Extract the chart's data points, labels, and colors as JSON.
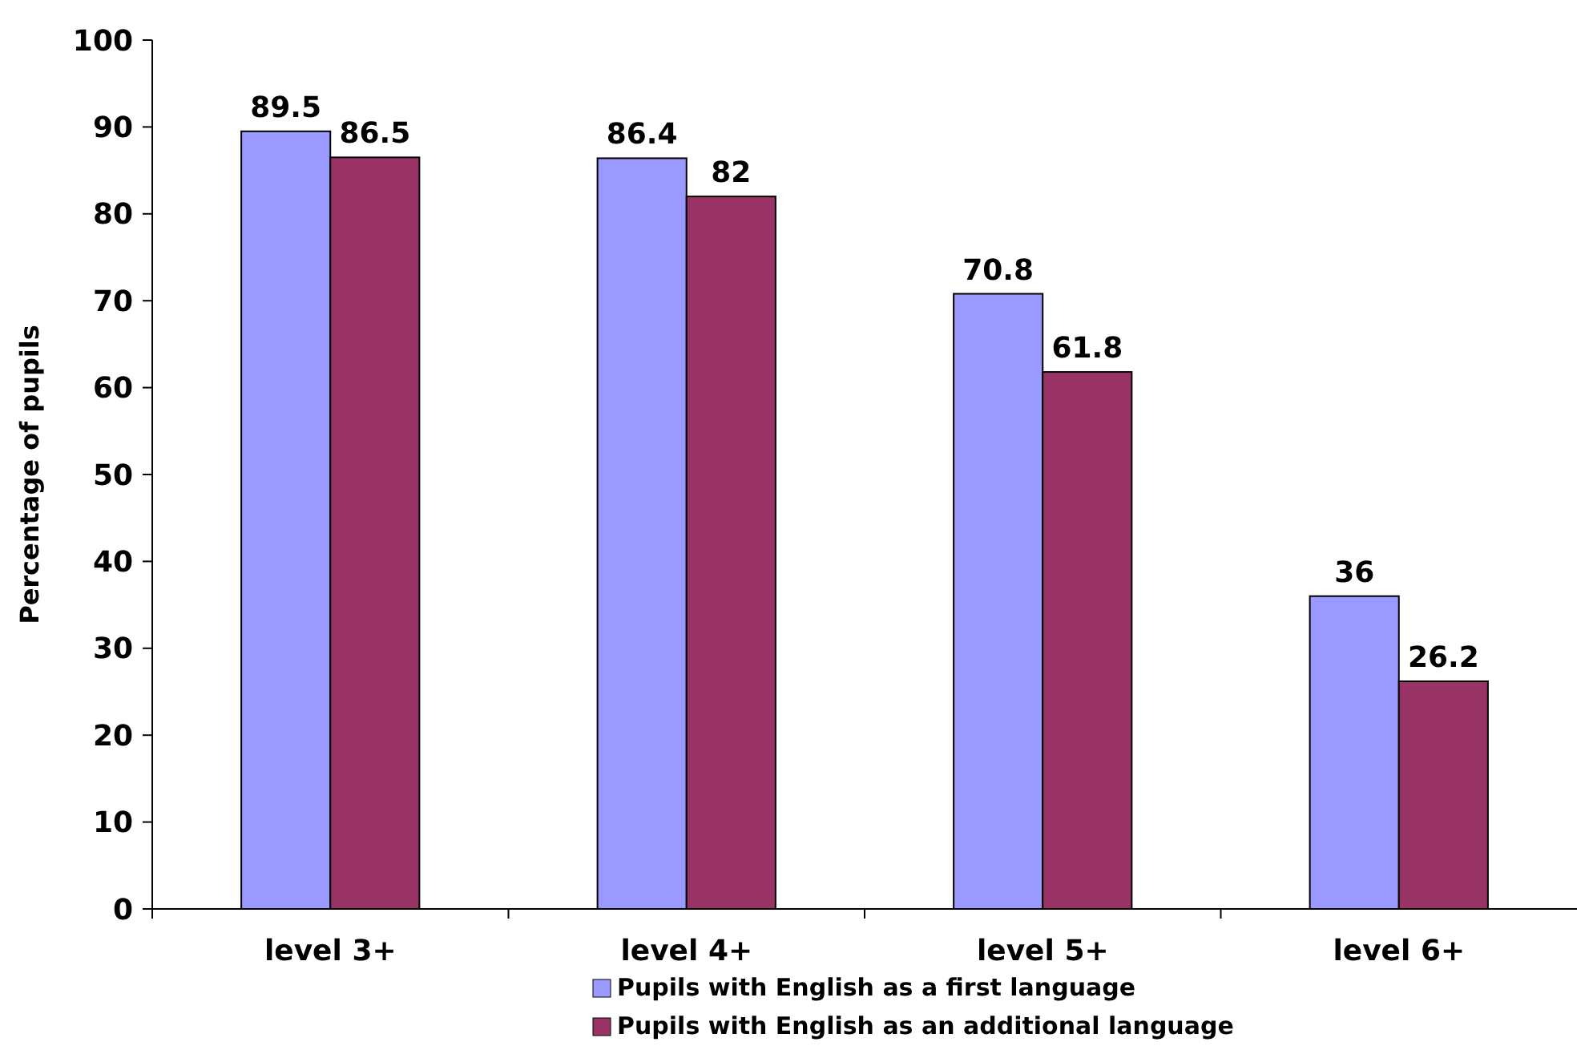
{
  "chart_data": {
    "type": "bar",
    "ylabel": "Percentage of pupils",
    "categories": [
      "level 3+",
      "level 4+",
      "level 5+",
      "level 6+"
    ],
    "series": [
      {
        "name": "Pupils with English as a first language",
        "color": "#9999ff",
        "values": [
          89.5,
          86.4,
          70.8,
          36
        ]
      },
      {
        "name": "Pupils with English as an additional language",
        "color": "#993366",
        "values": [
          86.5,
          82,
          61.8,
          26.2
        ]
      }
    ],
    "ylim": [
      0,
      100
    ],
    "yticks": [
      0,
      10,
      20,
      30,
      40,
      50,
      60,
      70,
      80,
      90,
      100
    ],
    "data_labels": true,
    "legend": "bottom",
    "grid": false
  }
}
